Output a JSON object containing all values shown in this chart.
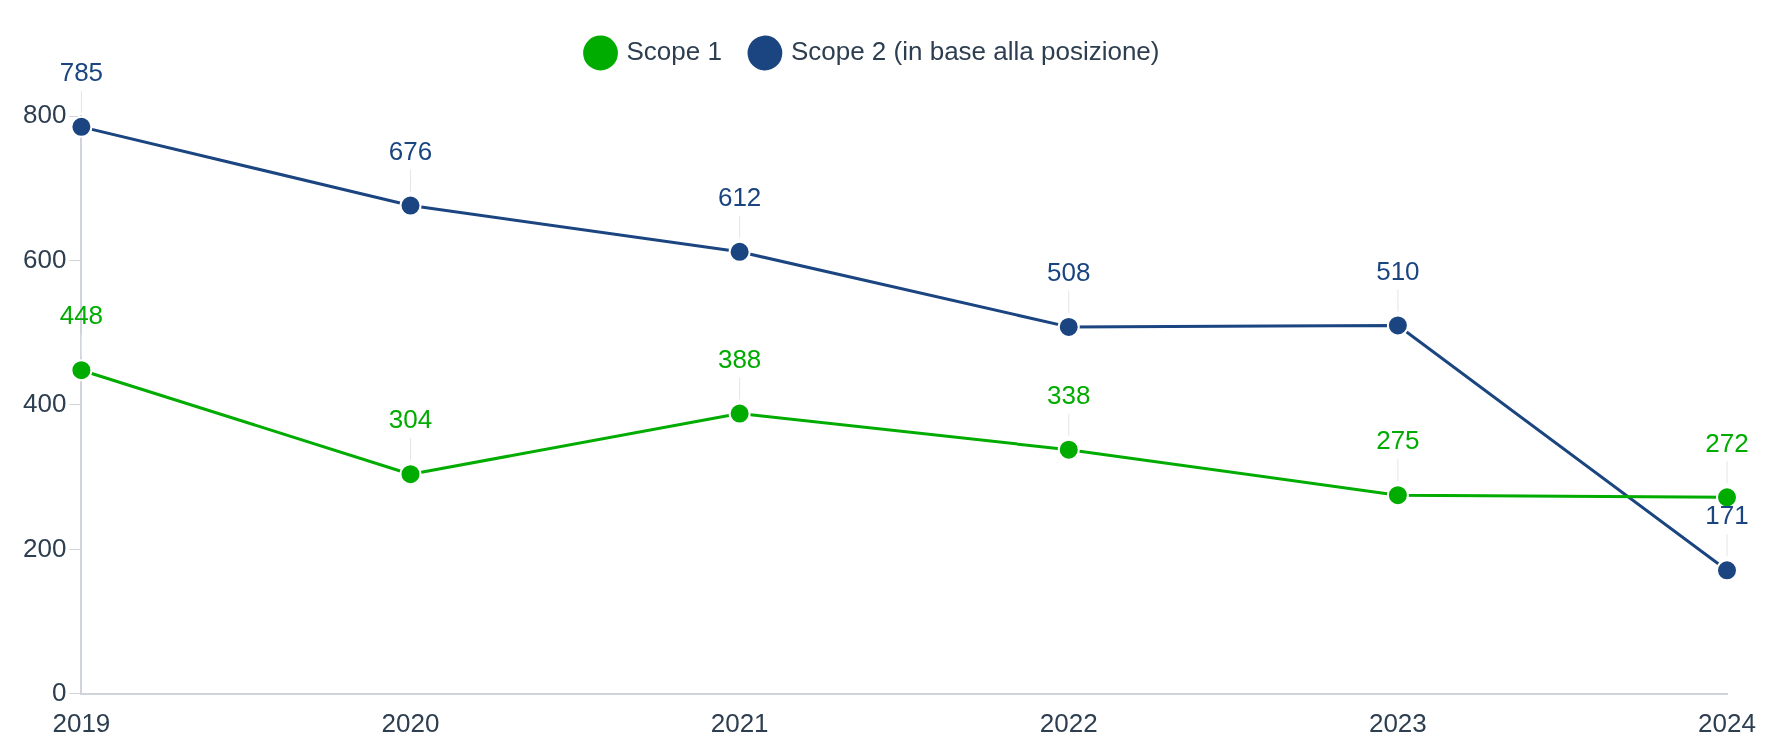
{
  "chart_data": {
    "type": "line",
    "categories": [
      "2019",
      "2020",
      "2021",
      "2022",
      "2023",
      "2024"
    ],
    "series": [
      {
        "name": "Scope 1",
        "color": "#00ac00",
        "values": [
          448,
          304,
          388,
          338,
          275,
          272
        ]
      },
      {
        "name": "Scope 2 (in base alla posizione)",
        "color": "#1b4580",
        "values": [
          785,
          676,
          612,
          508,
          510,
          171
        ]
      }
    ],
    "ylim": [
      0,
      800
    ],
    "yticks": [
      0,
      200,
      400,
      600,
      800
    ],
    "grid": false,
    "legend": "top",
    "marker": "circle",
    "line_style": "solid",
    "data_labels": true
  }
}
